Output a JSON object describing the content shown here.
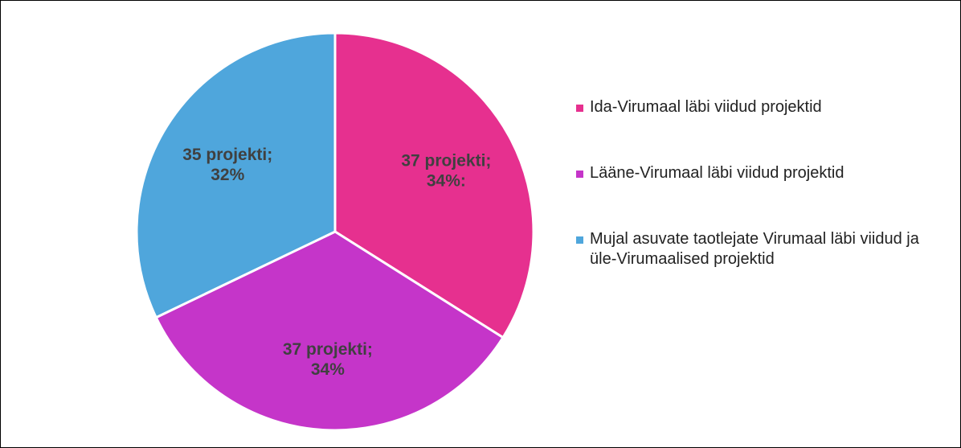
{
  "chart_data": {
    "type": "pie",
    "categories": [
      "Ida-Virumaal läbi viidud projektid",
      "Lääne-Virumaal läbi viidud projektid",
      "Mujal asuvate taotlejate Virumaal läbi viidud ja üle-Virumaalised projektid"
    ],
    "values": [
      37,
      37,
      35
    ],
    "value_labels": [
      "37 projekti; 34%:",
      "37 projekti; 34%",
      "35 projekti; 32%"
    ],
    "colors": [
      "#e6308f",
      "#c535c9",
      "#4fa6dc"
    ],
    "legend": "right"
  }
}
